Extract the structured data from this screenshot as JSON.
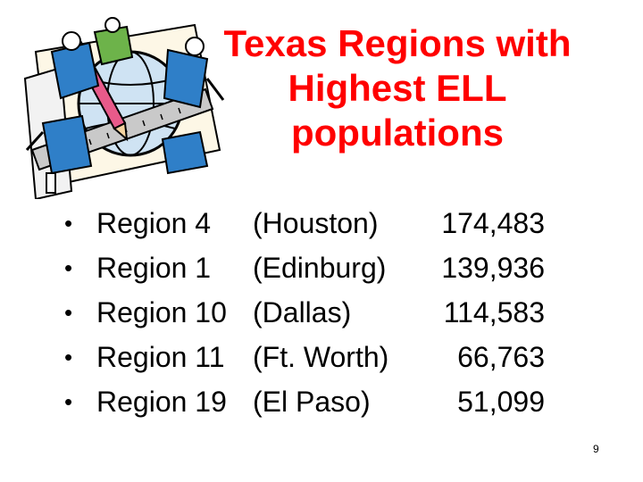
{
  "title": {
    "lines": [
      "Texas Regions with",
      "Highest ELL",
      "populations"
    ]
  },
  "bullets": [
    {
      "region": "Region 4",
      "city": "(Houston)",
      "value": "174,483"
    },
    {
      "region": "Region 1",
      "city": "(Edinburg)",
      "value": "139,936"
    },
    {
      "region": "Region 10",
      "city": "(Dallas)",
      "value": "114,583"
    },
    {
      "region": "Region 11",
      "city": "(Ft. Worth)",
      "value": "66,763"
    },
    {
      "region": "Region 19",
      "city": "(El Paso)",
      "value": "51,099"
    }
  ],
  "bullet_glyph": "•",
  "page_number": "9",
  "colors": {
    "title": "#ff0000",
    "body_text": "#000000",
    "background": "#ffffff"
  },
  "clipart": {
    "icon": "people-carrying-globe-and-pencil-clipart"
  }
}
